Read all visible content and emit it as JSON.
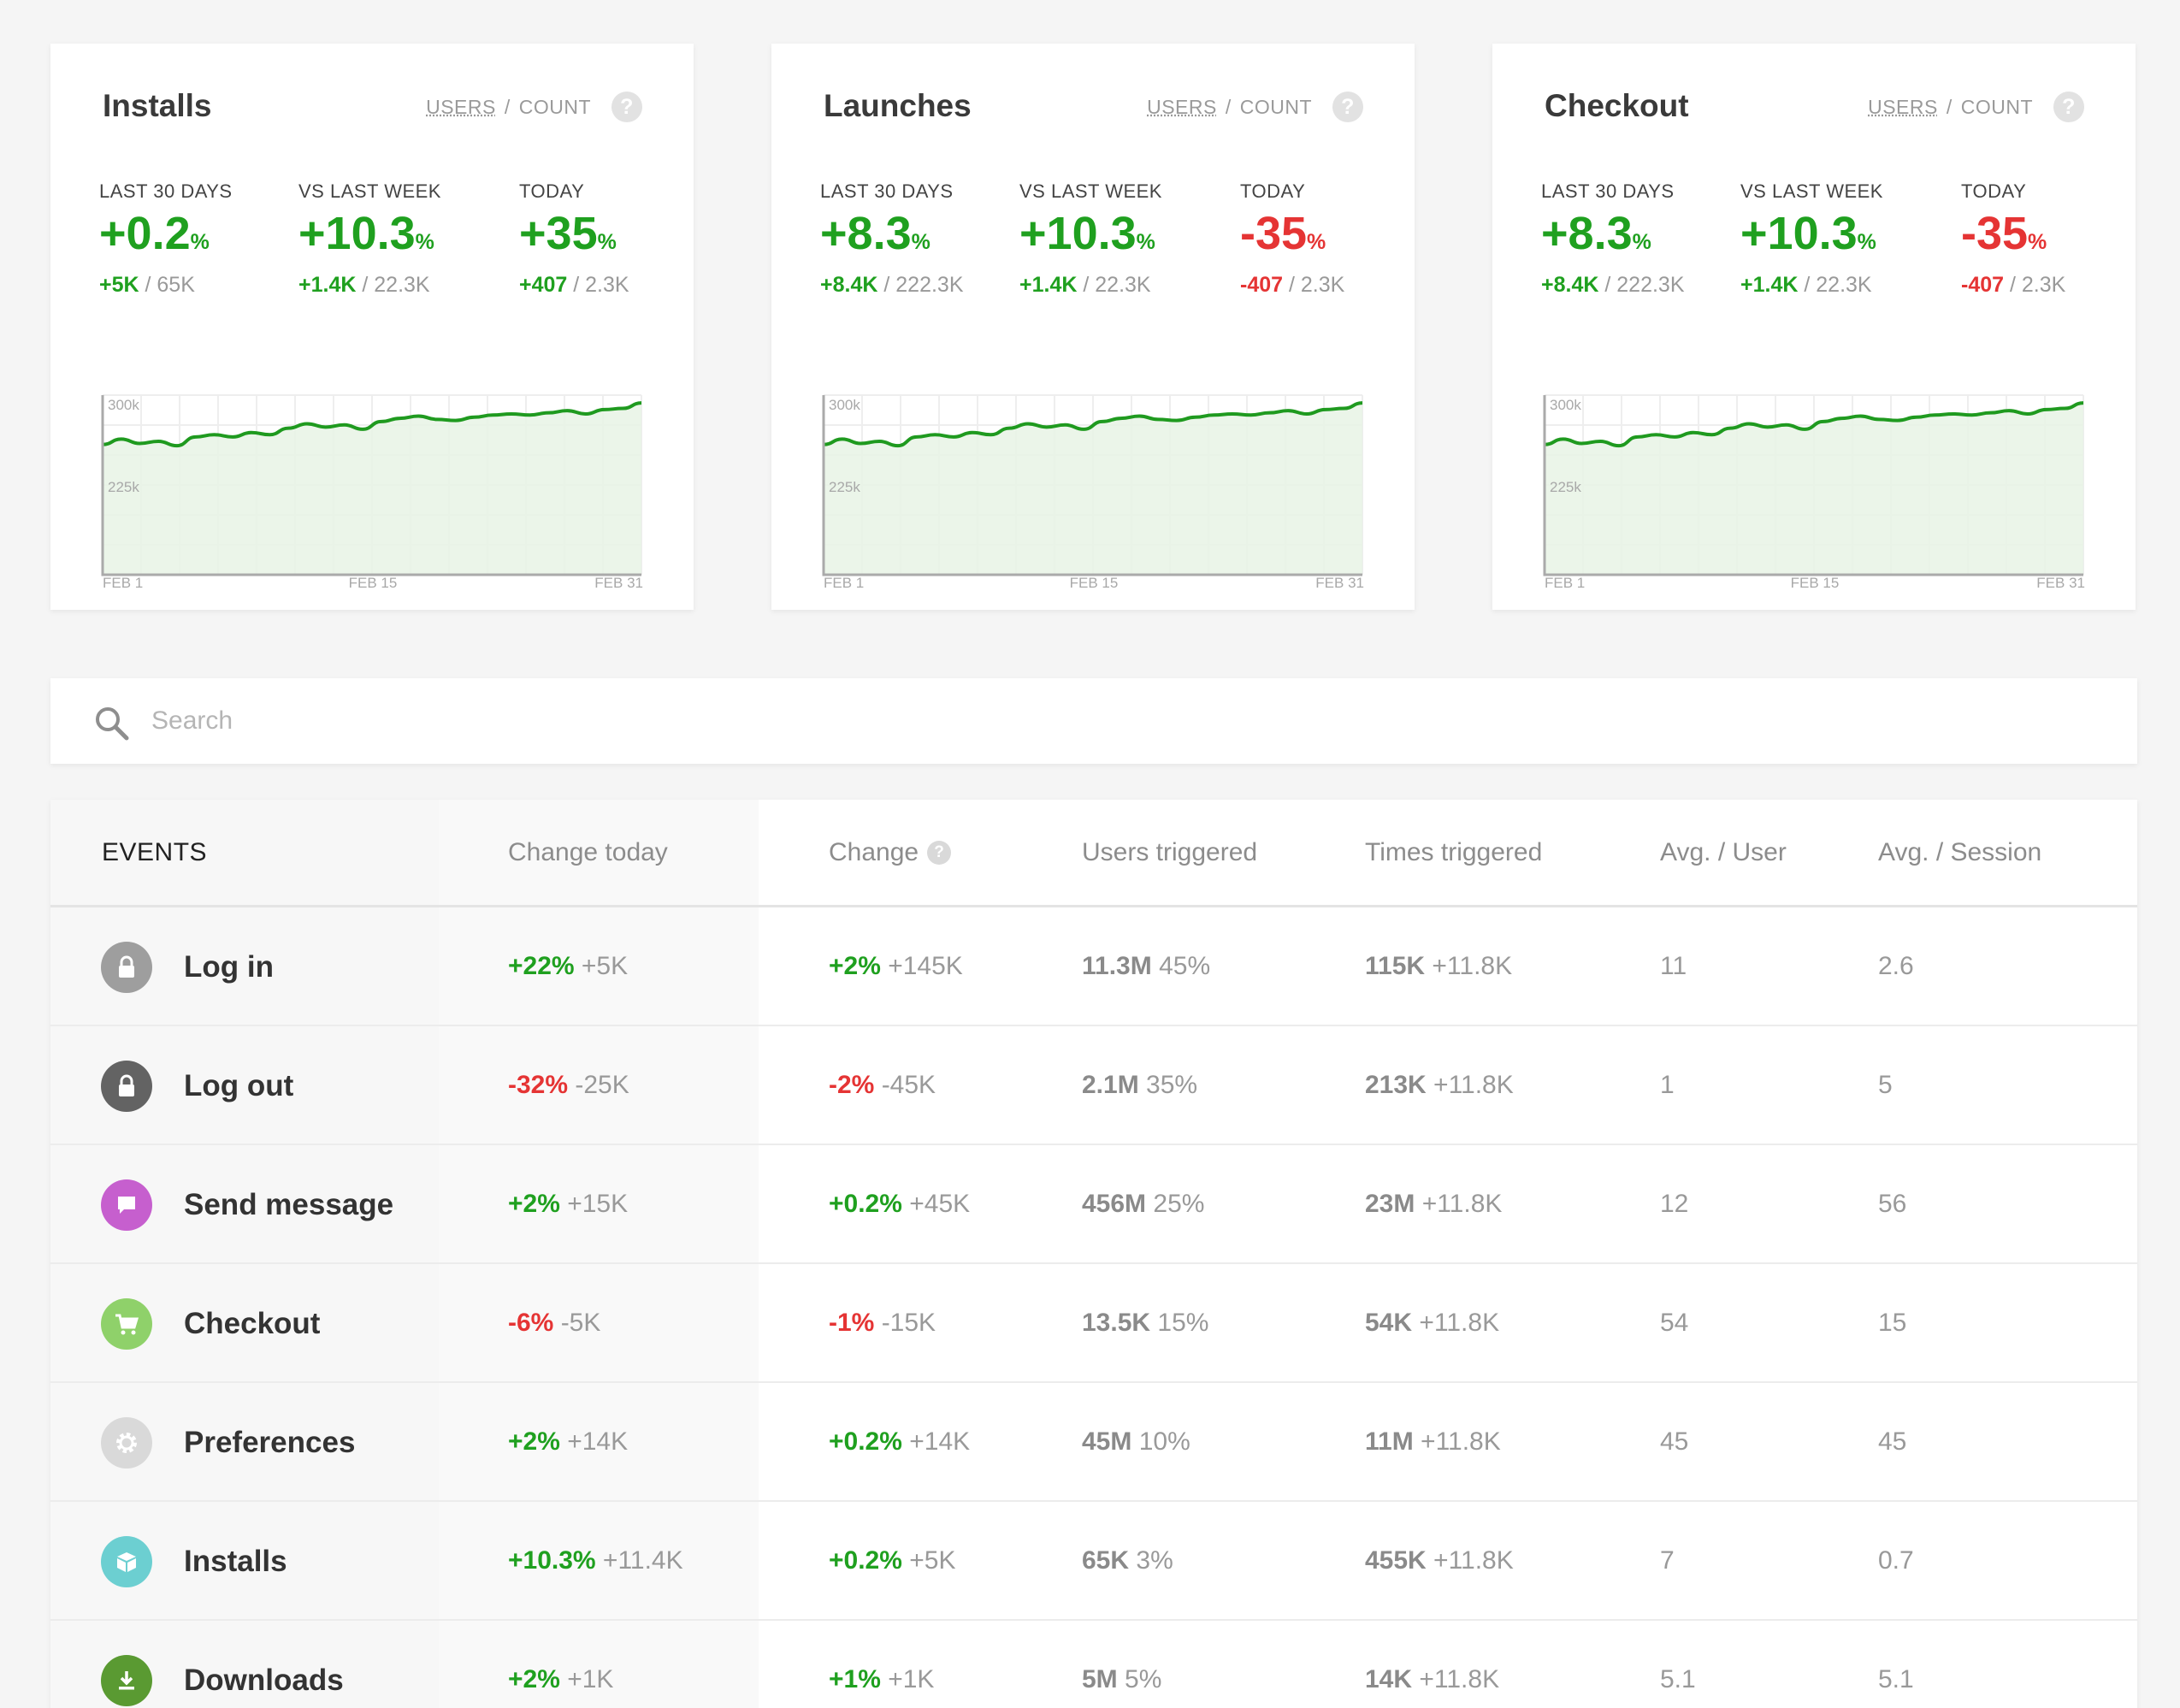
{
  "cards": [
    {
      "title": "Installs",
      "unit_users": "USERS",
      "unit_sep": " / ",
      "unit_count": "COUNT",
      "help": "?",
      "stats": [
        {
          "label": "LAST 30 DAYS",
          "value": "+0.2",
          "pct": "%",
          "sub_delta": "+5K",
          "sub_rest": " / 65K",
          "tone": "pos"
        },
        {
          "label": "VS LAST WEEK",
          "value": "+10.3",
          "pct": "%",
          "sub_delta": "+1.4K",
          "sub_rest": " / 22.3K",
          "tone": "pos"
        },
        {
          "label": "TODAY",
          "value": "+35",
          "pct": "%",
          "sub_delta": "+407",
          "sub_rest": " / 2.3K",
          "tone": "pos"
        }
      ],
      "chart": {
        "y_ticks": [
          "300k",
          "225k"
        ],
        "x_ticks": [
          "FEB 1",
          "FEB 15",
          "FEB 31"
        ]
      }
    },
    {
      "title": "Launches",
      "unit_users": "USERS",
      "unit_sep": " / ",
      "unit_count": "COUNT",
      "help": "?",
      "stats": [
        {
          "label": "LAST 30 DAYS",
          "value": "+8.3",
          "pct": "%",
          "sub_delta": "+8.4K",
          "sub_rest": " / 222.3K",
          "tone": "pos"
        },
        {
          "label": "VS LAST WEEK",
          "value": "+10.3",
          "pct": "%",
          "sub_delta": "+1.4K",
          "sub_rest": " / 22.3K",
          "tone": "pos"
        },
        {
          "label": "TODAY",
          "value": "-35",
          "pct": "%",
          "sub_delta": "-407",
          "sub_rest": " / 2.3K",
          "tone": "neg"
        }
      ],
      "chart": {
        "y_ticks": [
          "300k",
          "225k"
        ],
        "x_ticks": [
          "FEB 1",
          "FEB 15",
          "FEB 31"
        ]
      }
    },
    {
      "title": "Checkout",
      "unit_users": "USERS",
      "unit_sep": " / ",
      "unit_count": "COUNT",
      "help": "?",
      "stats": [
        {
          "label": "LAST 30 DAYS",
          "value": "+8.3",
          "pct": "%",
          "sub_delta": "+8.4K",
          "sub_rest": " / 222.3K",
          "tone": "pos"
        },
        {
          "label": "VS LAST WEEK",
          "value": "+10.3",
          "pct": "%",
          "sub_delta": "+1.4K",
          "sub_rest": " / 22.3K",
          "tone": "pos"
        },
        {
          "label": "TODAY",
          "value": "-35",
          "pct": "%",
          "sub_delta": "-407",
          "sub_rest": " / 2.3K",
          "tone": "neg"
        }
      ],
      "chart": {
        "y_ticks": [
          "300k",
          "225k"
        ],
        "x_ticks": [
          "FEB 1",
          "FEB 15",
          "FEB 31"
        ]
      }
    }
  ],
  "sparkline": [
    265,
    270,
    266,
    268,
    264,
    272,
    274,
    272,
    276,
    274,
    280,
    284,
    281,
    283,
    279,
    286,
    289,
    291,
    288,
    287,
    290,
    292,
    293,
    292,
    294,
    296,
    293,
    297,
    298,
    303
  ],
  "search": {
    "placeholder": "Search",
    "icon": "search-icon"
  },
  "table": {
    "headers": {
      "events": "EVENTS",
      "change_today": "Change today",
      "change": "Change",
      "change_help": "?",
      "users_triggered": "Users triggered",
      "times_triggered": "Times triggered",
      "avg_user": "Avg. / User",
      "avg_session": "Avg. / Session"
    },
    "rows": [
      {
        "icon": "lock-icon",
        "icon_color": "#9e9e9e",
        "name": "Log in",
        "ct_main": "+22%",
        "ct_sub": " +5K",
        "ct_tone": "pos",
        "ch_main": "+2%",
        "ch_sub": " +145K",
        "ch_tone": "pos",
        "users_main": "11.3M",
        "users_sub": " 45%",
        "times_main": "115K",
        "times_sub": " +11.8K",
        "avg_user": "11",
        "avg_session": "2.6"
      },
      {
        "icon": "lock-icon",
        "icon_color": "#636363",
        "name": "Log out",
        "ct_main": "-32%",
        "ct_sub": " -25K",
        "ct_tone": "neg",
        "ch_main": "-2%",
        "ch_sub": " -45K",
        "ch_tone": "neg",
        "users_main": "2.1M",
        "users_sub": " 35%",
        "times_main": "213K",
        "times_sub": " +11.8K",
        "avg_user": "1",
        "avg_session": "5"
      },
      {
        "icon": "message-icon",
        "icon_color": "#c65fce",
        "name": "Send message",
        "ct_main": "+2%",
        "ct_sub": " +15K",
        "ct_tone": "pos",
        "ch_main": "+0.2%",
        "ch_sub": " +45K",
        "ch_tone": "pos",
        "users_main": "456M",
        "users_sub": " 25%",
        "times_main": "23M",
        "times_sub": " +11.8K",
        "avg_user": "12",
        "avg_session": "56"
      },
      {
        "icon": "cart-icon",
        "icon_color": "#8fd16a",
        "name": "Checkout",
        "ct_main": "-6%",
        "ct_sub": " -5K",
        "ct_tone": "neg",
        "ch_main": "-1%",
        "ch_sub": " -15K",
        "ch_tone": "neg",
        "users_main": "13.5K",
        "users_sub": " 15%",
        "times_main": "54K",
        "times_sub": " +11.8K",
        "avg_user": "54",
        "avg_session": "15"
      },
      {
        "icon": "gear-icon",
        "icon_color": "#d9d9d9",
        "name": "Preferences",
        "ct_main": "+2%",
        "ct_sub": " +14K",
        "ct_tone": "pos",
        "ch_main": "+0.2%",
        "ch_sub": " +14K",
        "ch_tone": "pos",
        "users_main": "45M",
        "users_sub": " 10%",
        "times_main": "11M",
        "times_sub": " +11.8K",
        "avg_user": "45",
        "avg_session": "45"
      },
      {
        "icon": "box-icon",
        "icon_color": "#6ccfd1",
        "name": "Installs",
        "ct_main": "+10.3%",
        "ct_sub": " +11.4K",
        "ct_tone": "pos",
        "ch_main": "+0.2%",
        "ch_sub": " +5K",
        "ch_tone": "pos",
        "users_main": "65K",
        "users_sub": " 3%",
        "times_main": "455K",
        "times_sub": " +11.8K",
        "avg_user": "7",
        "avg_session": "0.7"
      },
      {
        "icon": "download-icon",
        "icon_color": "#5a9a32",
        "name": "Downloads",
        "ct_main": "+2%",
        "ct_sub": " +1K",
        "ct_tone": "pos",
        "ch_main": "+1%",
        "ch_sub": " +1K",
        "ch_tone": "pos",
        "users_main": "5M",
        "users_sub": " 5%",
        "times_main": "14K",
        "times_sub": " +11.8K",
        "avg_user": "5.1",
        "avg_session": "5.1"
      }
    ]
  },
  "colors": {
    "positive": "#1fa01f",
    "negative": "#e53434",
    "chart_line": "#1f9a1f",
    "chart_fill": "#e8f3e5"
  }
}
